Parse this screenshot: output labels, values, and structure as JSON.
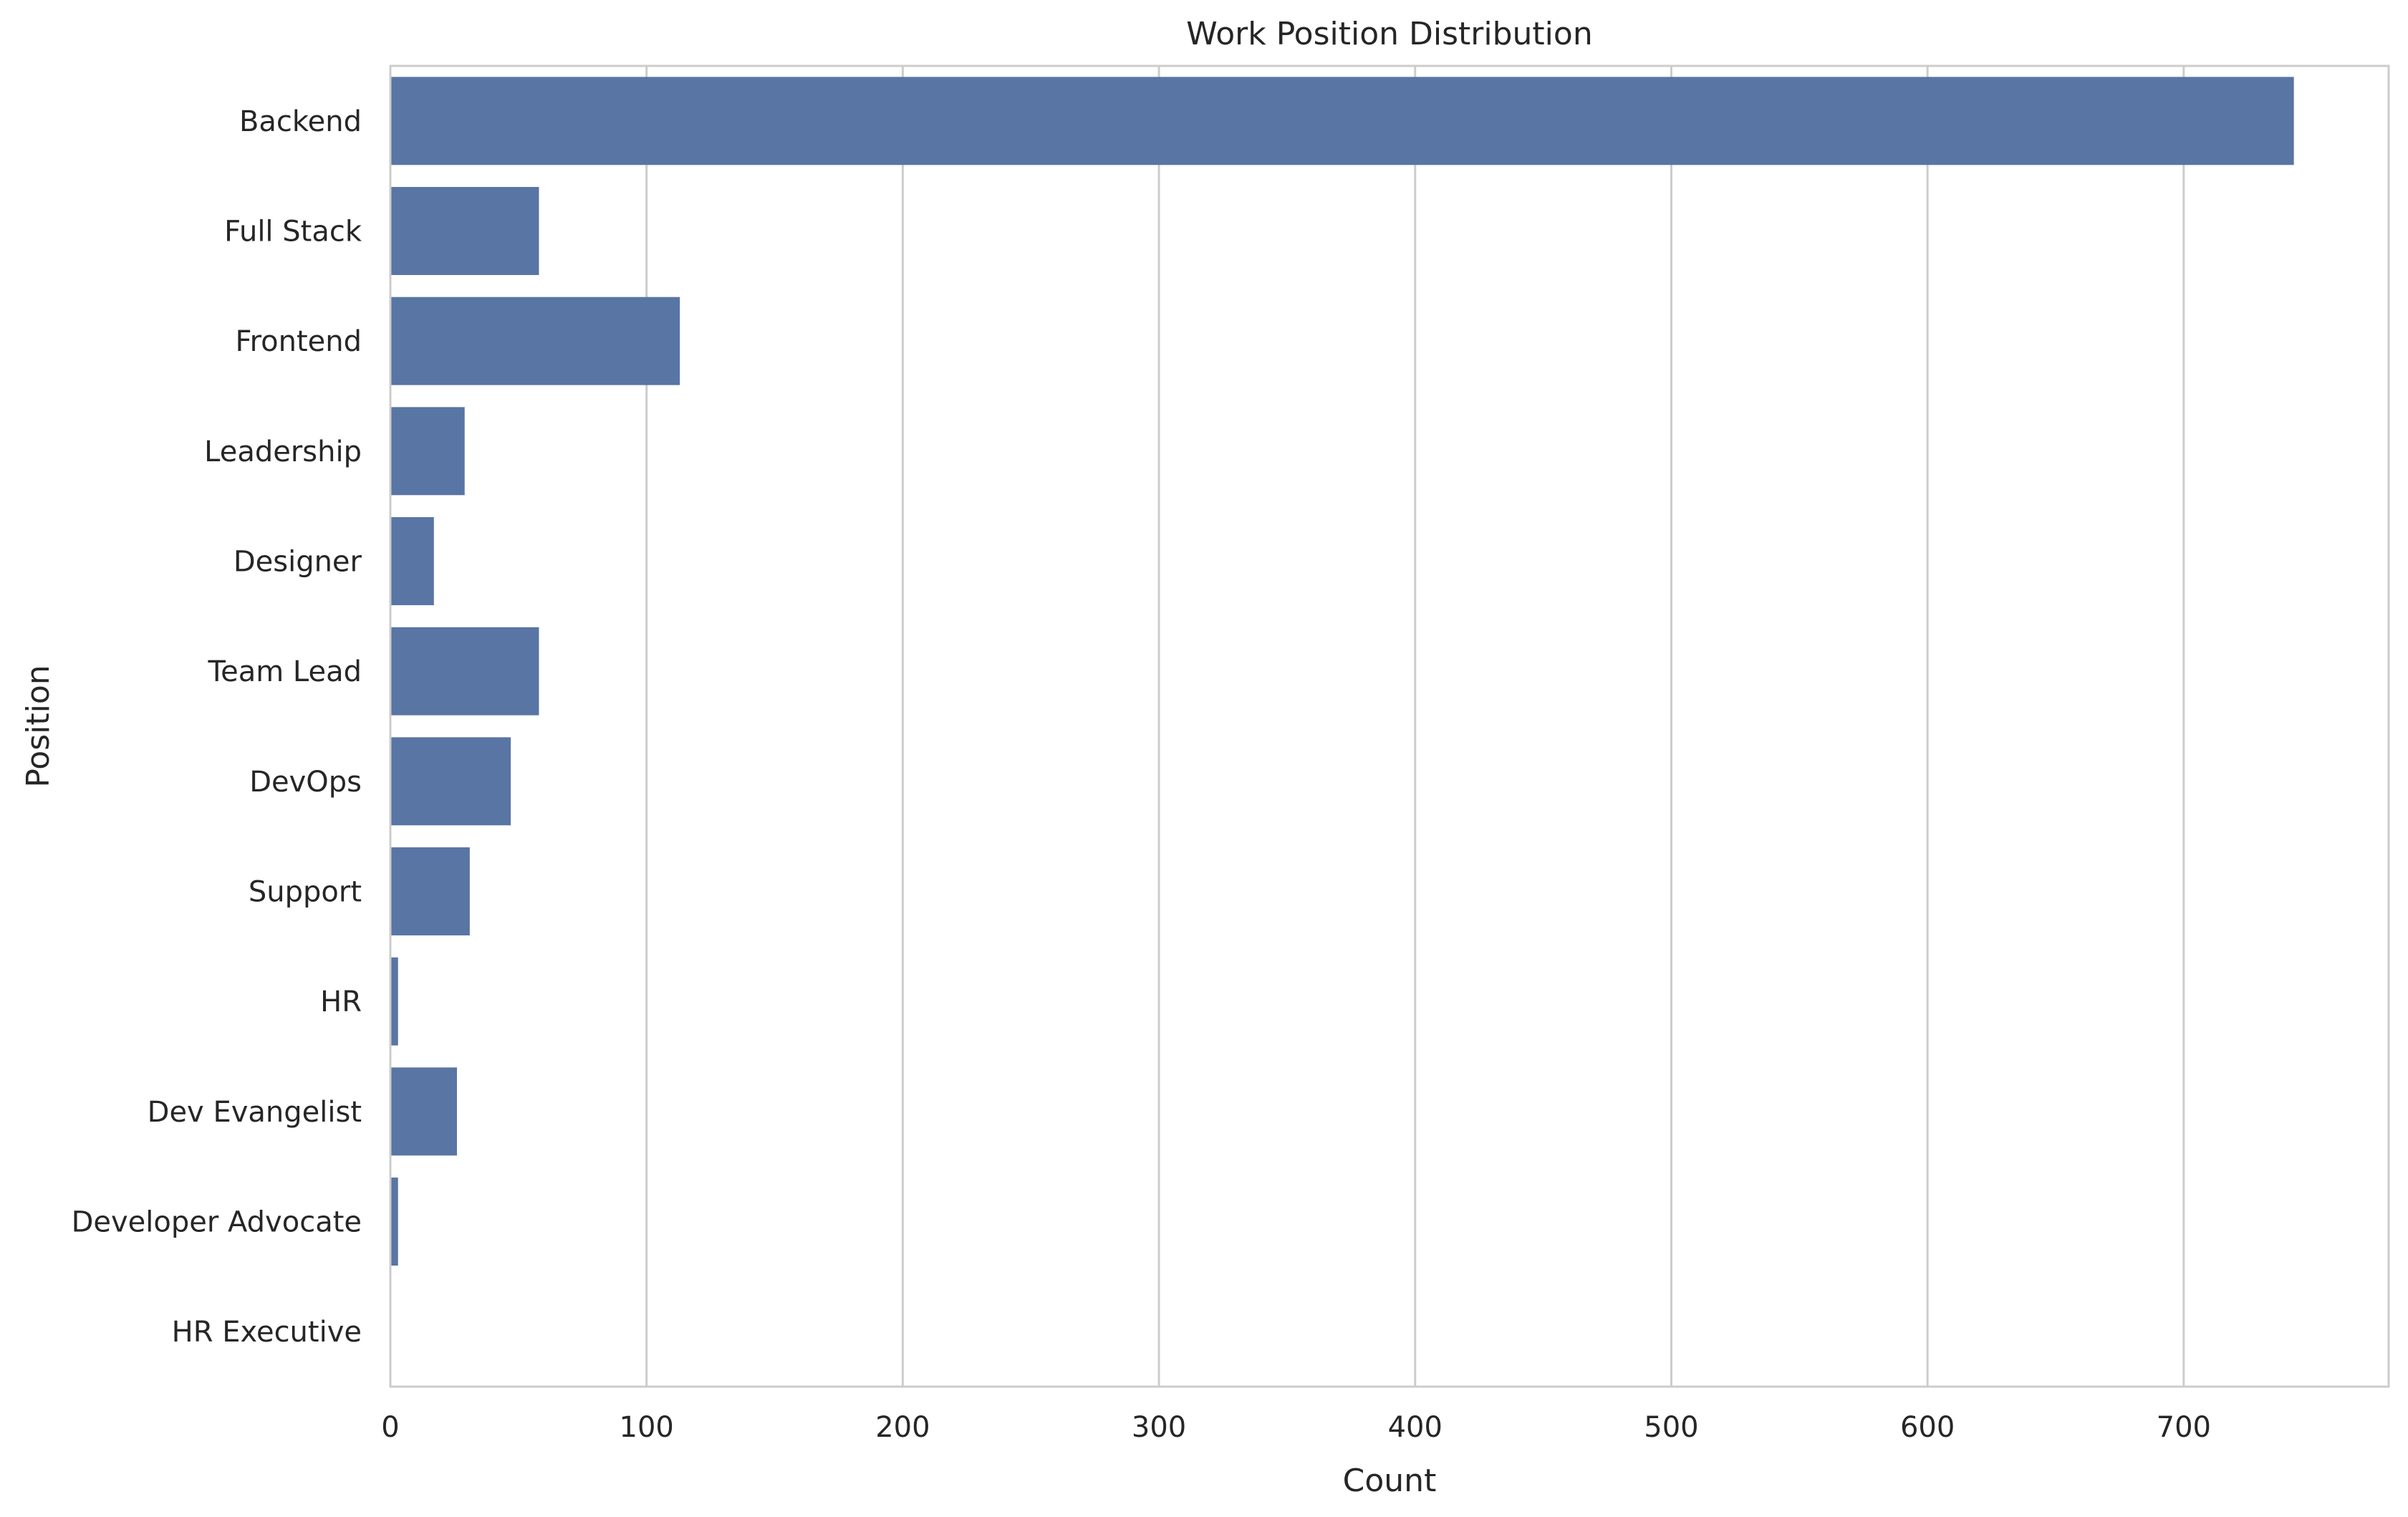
{
  "chart_data": {
    "type": "bar",
    "orientation": "horizontal",
    "title": "Work Position Distribution",
    "xlabel": "Count",
    "ylabel": "Position",
    "categories": [
      "Backend",
      "Full Stack",
      "Frontend",
      "Leadership",
      "Designer",
      "Team Lead",
      "DevOps",
      "Support",
      "HR",
      "Dev Evangelist",
      "Developer Advocate",
      "HR Executive"
    ],
    "values": [
      743,
      58,
      113,
      29,
      17,
      58,
      47,
      31,
      3,
      26,
      3,
      0
    ],
    "xlim": [
      0,
      780
    ],
    "xticks": [
      0,
      100,
      200,
      300,
      400,
      500,
      600,
      700
    ],
    "grid": "vertical",
    "bar_color": "#5875a4",
    "grid_color": "#cccccc",
    "spine_color": "#cccccc",
    "text_color": "#262626"
  }
}
